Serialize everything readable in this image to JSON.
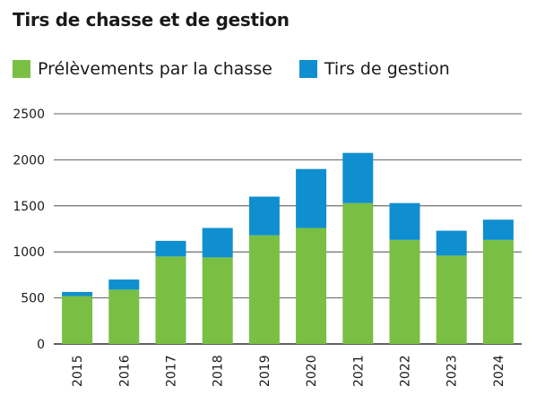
{
  "chart_data": {
    "type": "bar",
    "stacked": true,
    "title": "Tirs de chasse et de gestion",
    "xlabel": "",
    "ylabel": "",
    "ylim": [
      0,
      2500
    ],
    "yticks": [
      0,
      500,
      1000,
      1500,
      2000,
      2500
    ],
    "grid": true,
    "legend_position": "top-left",
    "categories": [
      "2015",
      "2016",
      "2017",
      "2018",
      "2019",
      "2020",
      "2021",
      "2022",
      "2023",
      "2024"
    ],
    "series": [
      {
        "name": "Prélèvements par la chasse",
        "color": "#79bf44",
        "values": [
          520,
          590,
          950,
          940,
          1180,
          1260,
          1530,
          1130,
          960,
          1130
        ]
      },
      {
        "name": "Tirs de gestion",
        "color": "#0f8fd0",
        "values": [
          45,
          110,
          170,
          320,
          420,
          640,
          545,
          400,
          270,
          220
        ]
      }
    ]
  }
}
